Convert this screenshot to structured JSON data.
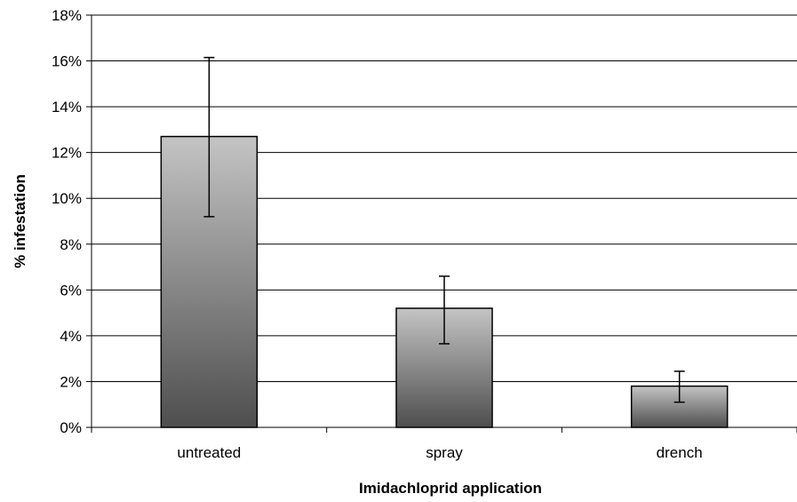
{
  "chart_data": {
    "type": "bar",
    "title": "",
    "xlabel": "Imidachloprid application",
    "ylabel": "% infestation",
    "categories": [
      "untreated",
      "spray",
      "drench"
    ],
    "values": [
      12.7,
      5.2,
      1.8
    ],
    "error_low": [
      9.2,
      3.65,
      1.1
    ],
    "error_high": [
      16.15,
      6.6,
      2.45
    ],
    "ylim": [
      0,
      18
    ],
    "yticks": [
      0,
      2,
      4,
      6,
      8,
      10,
      12,
      14,
      16,
      18
    ],
    "ytick_labels": [
      "0%",
      "2%",
      "4%",
      "6%",
      "8%",
      "10%",
      "12%",
      "14%",
      "16%",
      "18%"
    ],
    "grid": true,
    "legend": "none",
    "bar_gradient": [
      "#c4c4c4",
      "#4e4e4e"
    ]
  }
}
